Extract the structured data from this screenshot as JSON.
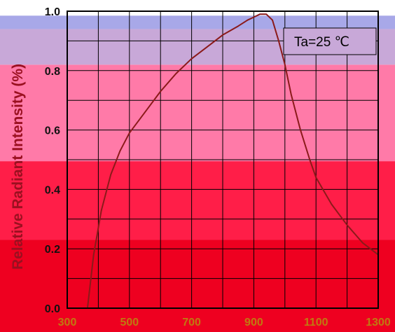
{
  "chart_data": {
    "type": "line",
    "ylabel": "Relative Radiant Intensity (%)",
    "annotation": "Ta=25 ℃",
    "xlim": [
      300,
      1300
    ],
    "ylim": [
      0.0,
      1.0
    ],
    "x_ticks": [
      "300",
      "500",
      "700",
      "900",
      "1100",
      "1300"
    ],
    "y_ticks": [
      "0.0",
      "0.2",
      "0.4",
      "0.6",
      "0.8",
      "1.0"
    ],
    "grid": true,
    "bands": [
      {
        "from": 0.0,
        "to": 0.23,
        "color": "#ee0020"
      },
      {
        "from": 0.23,
        "to": 0.495,
        "color": "#ff1e48"
      },
      {
        "from": 0.495,
        "to": 0.82,
        "color": "#ff7aa8"
      },
      {
        "from": 0.82,
        "to": 0.94,
        "color": "#c8a8d8"
      },
      {
        "from": 0.94,
        "to": 0.985,
        "color": "#a8a8e8"
      }
    ],
    "series": [
      {
        "color": "#8b1a1a",
        "x": [
          365,
          385,
          410,
          440,
          470,
          500,
          550,
          600,
          650,
          700,
          750,
          800,
          850,
          880,
          900,
          920,
          940,
          960,
          980,
          1000,
          1020,
          1050,
          1080,
          1100,
          1150,
          1200,
          1250,
          1300
        ],
        "y": [
          0.0,
          0.18,
          0.33,
          0.45,
          0.53,
          0.59,
          0.66,
          0.73,
          0.79,
          0.84,
          0.88,
          0.92,
          0.95,
          0.97,
          0.98,
          0.99,
          0.99,
          0.97,
          0.9,
          0.82,
          0.72,
          0.6,
          0.5,
          0.44,
          0.35,
          0.28,
          0.22,
          0.18
        ]
      }
    ]
  }
}
